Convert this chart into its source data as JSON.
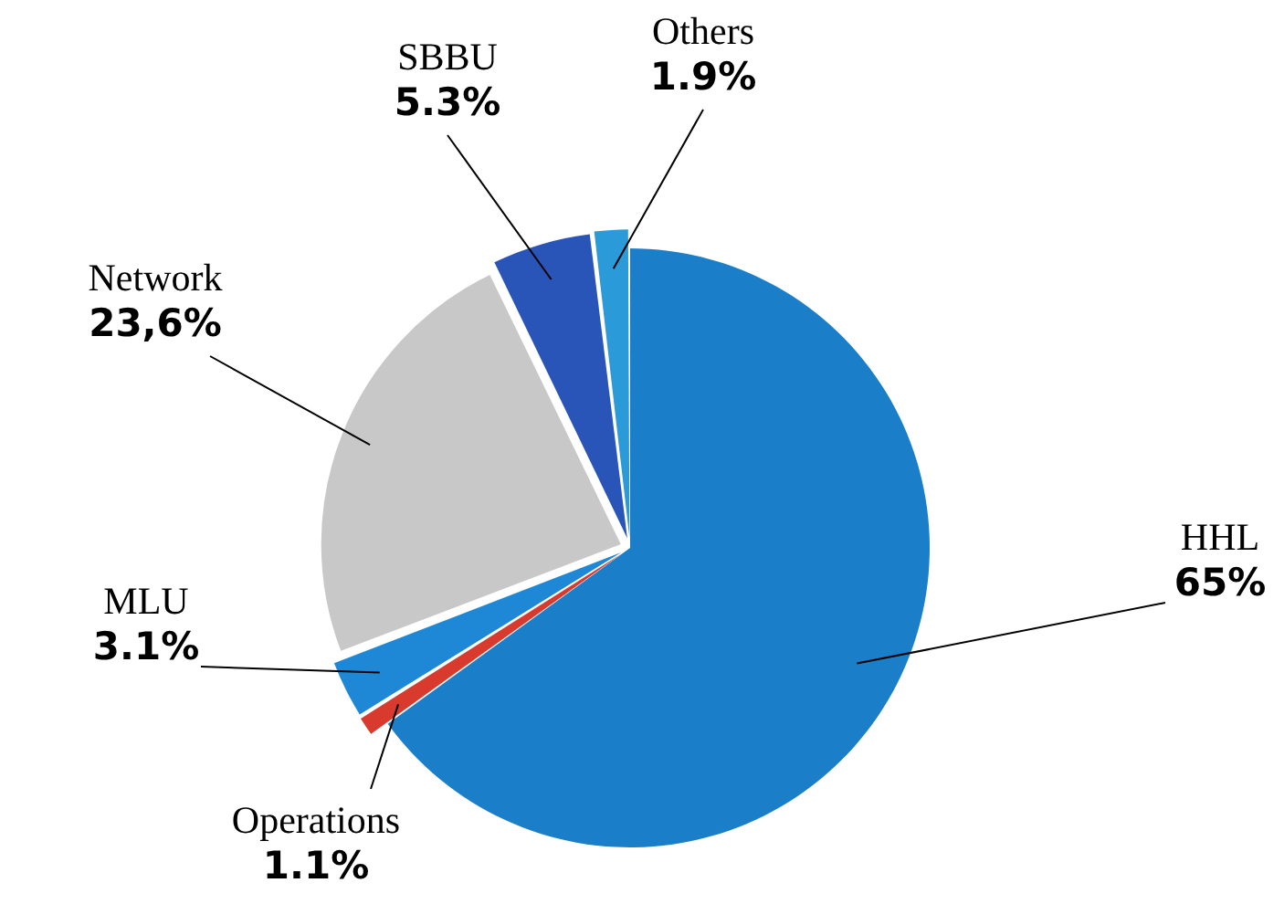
{
  "chart_data": {
    "type": "pie",
    "categories": [
      "HHL",
      "Operations",
      "MLU",
      "Network",
      "SBBU",
      "Others"
    ],
    "values": [
      65,
      1.1,
      3.1,
      23.6,
      5.3,
      1.9
    ],
    "colors": [
      "#1a7fc8",
      "#d93a2e",
      "#1e88d6",
      "#c8c8c8",
      "#2a55b8",
      "#2a9ad8"
    ],
    "value_labels": [
      "65%",
      "1.1%",
      "3.1%",
      "23,6%",
      "5.3%",
      "1.9%"
    ],
    "legend": false
  }
}
